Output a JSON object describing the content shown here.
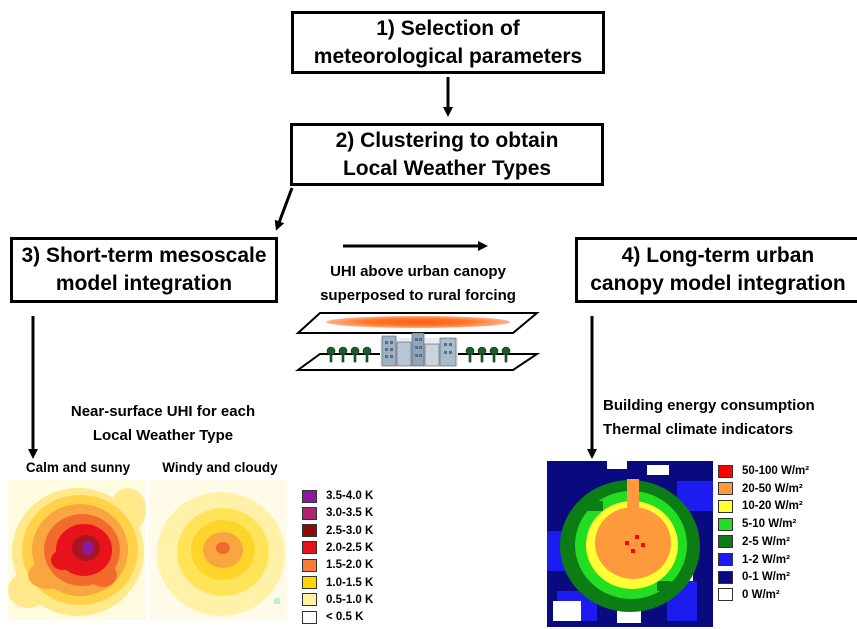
{
  "boxes": {
    "step1": {
      "line1": "1) Selection of",
      "line2": "meteorological parameters"
    },
    "step2": {
      "line1": "2) Clustering to obtain",
      "line2": "Local Weather Types"
    },
    "step3": {
      "line1": "3) Short-term mesoscale",
      "line2": "model integration"
    },
    "step4": {
      "line1": "4) Long-term urban",
      "line2": "canopy model integration"
    }
  },
  "uhi_caption": {
    "line1": "UHI above urban canopy",
    "line2": "superposed to rural forcing"
  },
  "near_surface_caption": {
    "line1": "Near-surface UHI for each",
    "line2": "Local Weather Type"
  },
  "outputs_caption": {
    "line1": "Building energy consumption",
    "line2": "Thermal climate indicators"
  },
  "map_titles": {
    "calm": "Calm and sunny",
    "windy": "Windy and cloudy"
  },
  "uhi_legend": [
    {
      "label": "3.5-4.0 K",
      "color": "#8b1aa0"
    },
    {
      "label": "3.0-3.5 K",
      "color": "#b0246e"
    },
    {
      "label": "2.5-3.0 K",
      "color": "#8b0a0a"
    },
    {
      "label": "2.0-2.5 K",
      "color": "#e8131a"
    },
    {
      "label": "1.5-2.0 K",
      "color": "#f77b3a"
    },
    {
      "label": "1.0-1.5 K",
      "color": "#ffd600"
    },
    {
      "label": "0.5-1.0 K",
      "color": "#fff3a0"
    },
    {
      "label": "< 0.5 K",
      "color": "#ffffff"
    }
  ],
  "energy_legend": [
    {
      "label": "50-100 W/m²",
      "color": "#ff0000"
    },
    {
      "label": "20-50 W/m²",
      "color": "#ff9a3c"
    },
    {
      "label": "10-20 W/m²",
      "color": "#ffff33"
    },
    {
      "label": "5-10 W/m²",
      "color": "#22dd22"
    },
    {
      "label": "2-5 W/m²",
      "color": "#0b7d14"
    },
    {
      "label": "1-2 W/m²",
      "color": "#1c1cf0"
    },
    {
      "label": "0-1 W/m²",
      "color": "#0a0a80"
    },
    {
      "label": "0 W/m²",
      "color": "#ffffff"
    }
  ]
}
